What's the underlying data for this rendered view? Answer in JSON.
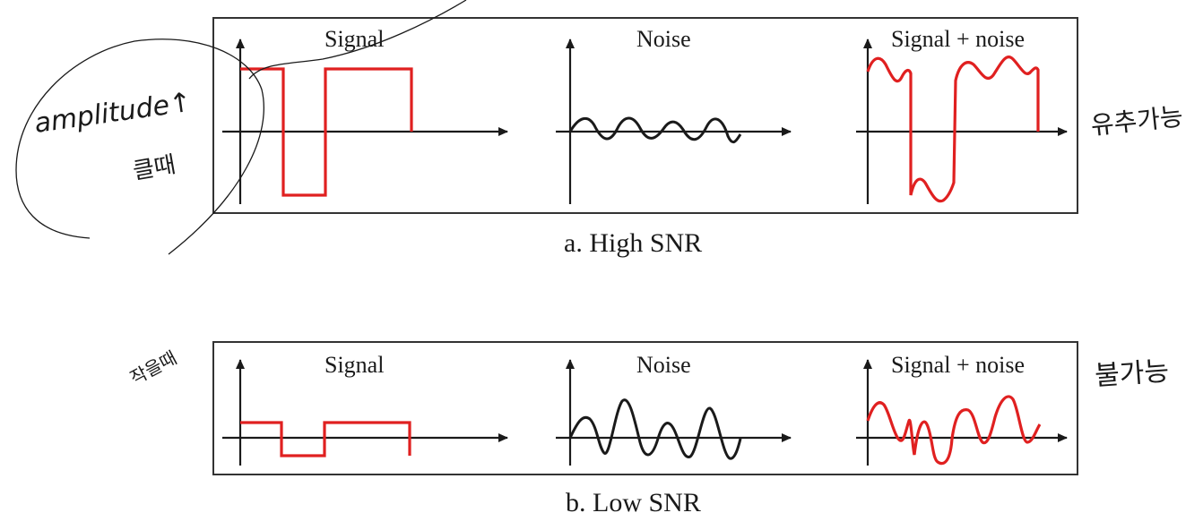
{
  "panels": {
    "high": {
      "caption": "a. High SNR",
      "signal_label": "Signal",
      "noise_label": "Noise",
      "sum_label": "Signal + noise",
      "signal_level": "high amplitude square wave",
      "noise_level": "small"
    },
    "low": {
      "caption": "b. Low SNR",
      "signal_label": "Signal",
      "noise_label": "Noise",
      "sum_label": "Signal + noise",
      "signal_level": "low amplitude square wave",
      "noise_level": "large"
    }
  },
  "annotations": {
    "amplitude": "amplitude↑",
    "when_large": "클때",
    "recoverable": "유추가능",
    "when_small": "작을때",
    "not_possible": "불가능"
  },
  "colors": {
    "signal": "#e02020",
    "noise": "#1a1a1a",
    "frame": "#333333",
    "ink": "#1a1a1a"
  }
}
